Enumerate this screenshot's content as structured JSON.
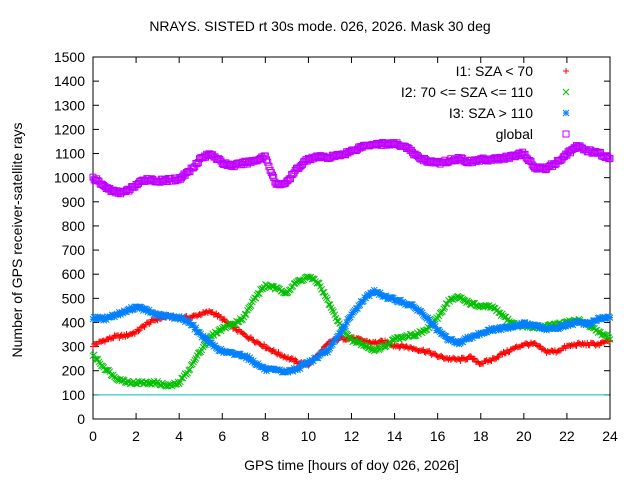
{
  "chart_data": {
    "type": "scatter",
    "title": "NRAYS. SISTED rt 30s mode. 026, 2026. Mask 30 deg",
    "xlabel": "GPS time [hours of doy 026, 2026]",
    "ylabel": "Number of GPS receiver-satellite rays",
    "xlim": [
      0,
      24
    ],
    "ylim": [
      0,
      1500
    ],
    "xticks": [
      "0",
      "2",
      "4",
      "6",
      "8",
      "10",
      "12",
      "14",
      "16",
      "18",
      "20",
      "22",
      "24"
    ],
    "yticks": [
      "0",
      "100",
      "200",
      "300",
      "400",
      "500",
      "600",
      "700",
      "800",
      "900",
      "1000",
      "1100",
      "1200",
      "1300",
      "1400",
      "1500"
    ],
    "reference_line": {
      "y": 100,
      "color": "#00c0c0"
    },
    "legend_position": "top-right",
    "series": [
      {
        "name": "I1: SZA < 70",
        "marker": "+",
        "color": "#ff0000",
        "x": [
          0,
          0.5,
          1,
          1.5,
          2,
          2.5,
          3,
          3.5,
          4,
          4.5,
          5,
          5.5,
          6,
          6.5,
          7,
          7.5,
          8,
          8.5,
          9,
          9.5,
          10,
          10.5,
          11,
          11.5,
          12,
          12.5,
          13,
          13.5,
          14,
          14.5,
          15,
          15.5,
          16,
          16.5,
          17,
          17.5,
          18,
          18.5,
          19,
          19.5,
          20,
          20.5,
          21,
          21.5,
          22,
          22.5,
          23,
          23.5,
          24
        ],
        "y": [
          305,
          325,
          340,
          345,
          360,
          395,
          415,
          425,
          420,
          420,
          435,
          445,
          415,
          380,
          350,
          325,
          300,
          275,
          255,
          235,
          225,
          270,
          320,
          335,
          335,
          325,
          315,
          320,
          305,
          300,
          290,
          280,
          260,
          250,
          245,
          255,
          230,
          245,
          270,
          290,
          310,
          310,
          280,
          280,
          300,
          310,
          310,
          310,
          325
        ]
      },
      {
        "name": "I2: 70 <= SZA <= 110",
        "marker": "x",
        "color": "#00c000",
        "x": [
          0,
          0.5,
          1,
          1.5,
          2,
          2.5,
          3,
          3.5,
          4,
          4.5,
          5,
          5.5,
          6,
          6.5,
          7,
          7.5,
          8,
          8.5,
          9,
          9.5,
          10,
          10.5,
          11,
          11.5,
          12,
          12.5,
          13,
          13.5,
          14,
          14.5,
          15,
          15.5,
          16,
          16.5,
          17,
          17.5,
          18,
          18.5,
          19,
          19.5,
          20,
          20.5,
          21,
          21.5,
          22,
          22.5,
          23,
          23.5,
          24
        ],
        "y": [
          265,
          215,
          175,
          155,
          150,
          150,
          150,
          135,
          150,
          210,
          285,
          345,
          375,
          395,
          420,
          500,
          555,
          540,
          525,
          570,
          590,
          560,
          470,
          380,
          325,
          310,
          285,
          300,
          330,
          345,
          350,
          370,
          420,
          490,
          505,
          480,
          465,
          465,
          430,
          395,
          385,
          380,
          385,
          390,
          400,
          410,
          390,
          360,
          330
        ]
      },
      {
        "name": "I3: SZA > 110",
        "marker": "*",
        "color": "#0080ff",
        "x": [
          0,
          0.5,
          1,
          1.5,
          2,
          2.5,
          3,
          3.5,
          4,
          4.5,
          5,
          5.5,
          6,
          6.5,
          7,
          7.5,
          8,
          8.5,
          9,
          9.5,
          10,
          10.5,
          11,
          11.5,
          12,
          12.5,
          13,
          13.5,
          14,
          14.5,
          15,
          15.5,
          16,
          16.5,
          17,
          17.5,
          18,
          18.5,
          19,
          19.5,
          20,
          20.5,
          21,
          21.5,
          22,
          22.5,
          23,
          23.5,
          24
        ],
        "y": [
          420,
          415,
          430,
          445,
          465,
          450,
          430,
          425,
          420,
          400,
          350,
          310,
          280,
          270,
          265,
          235,
          205,
          200,
          195,
          210,
          235,
          260,
          290,
          360,
          430,
          490,
          530,
          510,
          495,
          480,
          460,
          420,
          365,
          330,
          315,
          340,
          355,
          370,
          375,
          385,
          395,
          385,
          375,
          375,
          390,
          400,
          395,
          415,
          420
        ]
      },
      {
        "name": "global",
        "marker": "square",
        "color": "#c000ff",
        "x": [
          0,
          0.5,
          1,
          1.5,
          2,
          2.5,
          3,
          3.5,
          4,
          4.5,
          5,
          5.5,
          6,
          6.5,
          7,
          7.5,
          8,
          8.5,
          9,
          9.5,
          10,
          10.5,
          11,
          11.5,
          12,
          12.5,
          13,
          13.5,
          14,
          14.5,
          15,
          15.5,
          16,
          16.5,
          17,
          17.5,
          18,
          18.5,
          19,
          19.5,
          20,
          20.5,
          21,
          21.5,
          22,
          22.5,
          23,
          23.5,
          24
        ],
        "y": [
          1000,
          965,
          940,
          940,
          970,
          995,
          985,
          990,
          995,
          1030,
          1080,
          1100,
          1060,
          1050,
          1060,
          1070,
          1090,
          970,
          980,
          1040,
          1080,
          1085,
          1085,
          1095,
          1110,
          1130,
          1140,
          1140,
          1140,
          1130,
          1090,
          1070,
          1060,
          1070,
          1080,
          1065,
          1075,
          1075,
          1080,
          1090,
          1100,
          1040,
          1040,
          1060,
          1100,
          1130,
          1110,
          1100,
          1080
        ]
      }
    ]
  }
}
